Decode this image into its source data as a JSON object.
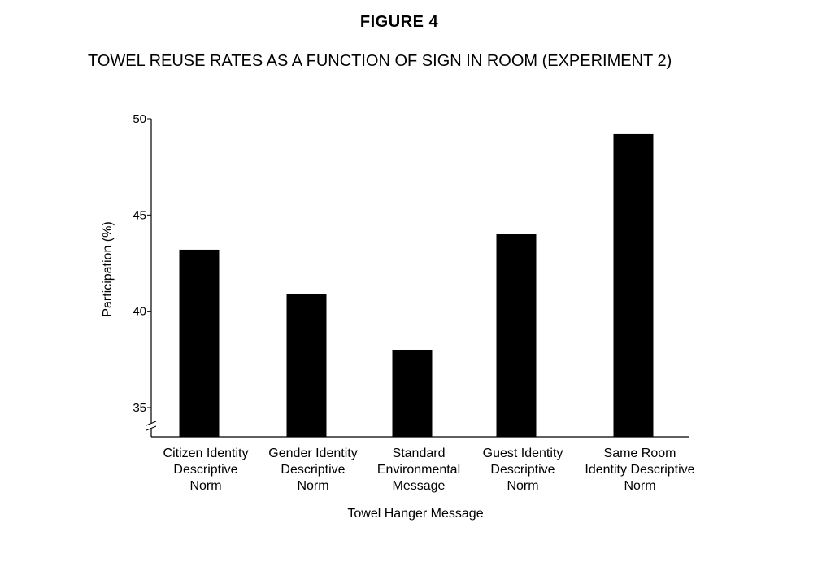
{
  "figure_label": "FIGURE  4",
  "chart_data": {
    "type": "bar",
    "title": "TOWEL REUSE RATES AS A FUNCTION OF SIGN IN ROOM (EXPERIMENT 2)",
    "xlabel": "Towel Hanger Message",
    "ylabel": "Participation (%)",
    "categories": [
      [
        "Citizen Identity",
        "Descriptive",
        "Norm"
      ],
      [
        "Gender Identity",
        "Descriptive",
        "Norm"
      ],
      [
        "Standard",
        "Environmental",
        "Message"
      ],
      [
        "Guest Identity",
        "Descriptive",
        "Norm"
      ],
      [
        "Same Room",
        "Identity Descriptive",
        "Norm"
      ]
    ],
    "values": [
      43.2,
      40.9,
      38.0,
      44.0,
      49.2
    ],
    "ylim": [
      33.5,
      50
    ],
    "yticks": [
      35,
      40,
      45,
      50
    ],
    "axis_break": true,
    "bar_color": "#000000",
    "grid": false
  }
}
